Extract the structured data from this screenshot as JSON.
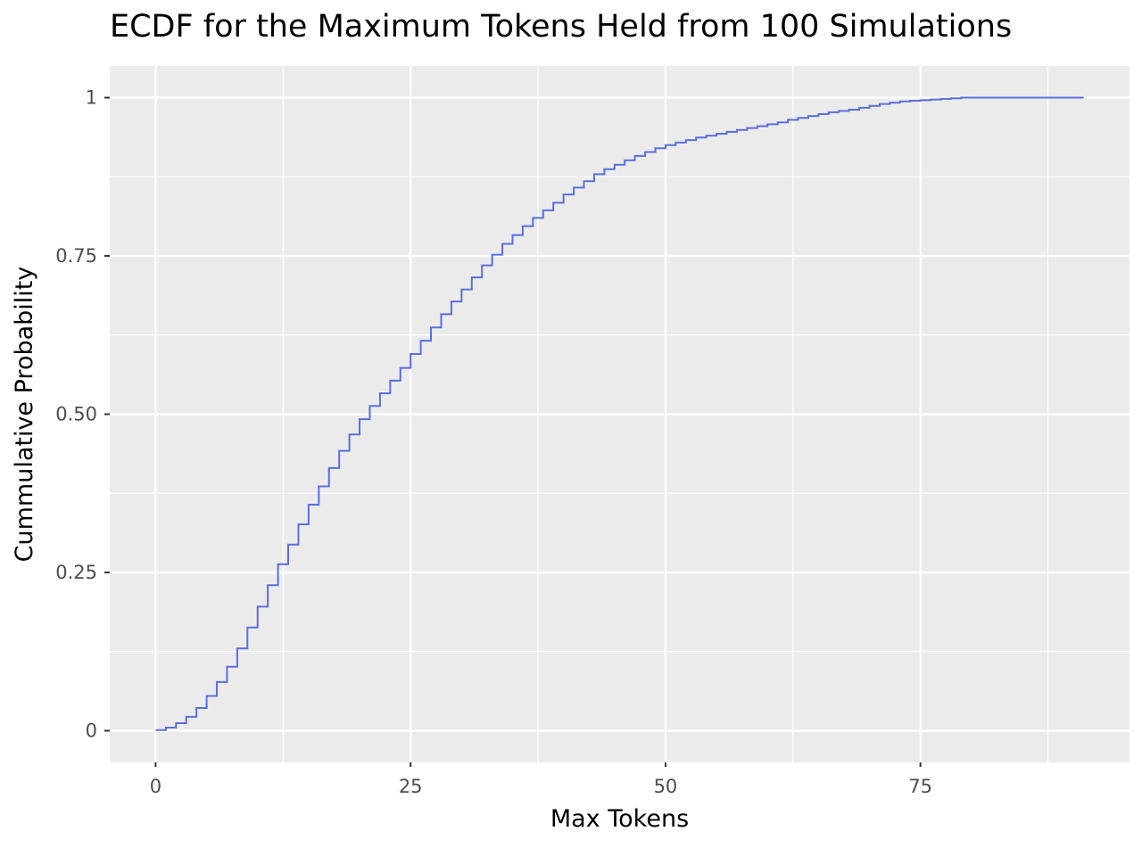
{
  "chart_data": {
    "type": "line",
    "subtype": "ecdf-step",
    "title": "ECDF for the Maximum Tokens Held from 100 Simulations",
    "xlabel": "Max Tokens",
    "ylabel": "Cummulative Probability",
    "xlim": [
      -4.5,
      95.5
    ],
    "ylim": [
      -0.05,
      1.05
    ],
    "x_ticks": [
      {
        "value": 0,
        "label": "0"
      },
      {
        "value": 25,
        "label": "25"
      },
      {
        "value": 50,
        "label": "50"
      },
      {
        "value": 75,
        "label": "75"
      }
    ],
    "y_ticks": [
      {
        "value": 0,
        "label": "0"
      },
      {
        "value": 0.25,
        "label": "0.25"
      },
      {
        "value": 0.5,
        "label": "0.50"
      },
      {
        "value": 0.75,
        "label": "0.75"
      },
      {
        "value": 1,
        "label": "1"
      }
    ],
    "grid": true,
    "colors": {
      "panel": "#ebebeb",
      "grid": "#ffffff",
      "line": "#5b6ee1"
    },
    "series": [
      {
        "x": [
          0,
          1,
          2,
          3,
          4,
          5,
          6,
          7,
          8,
          9,
          10,
          11,
          12,
          13,
          14,
          15,
          16,
          17,
          18,
          19,
          20,
          21,
          22,
          23,
          24,
          25,
          26,
          27,
          28,
          29,
          30,
          31,
          32,
          33,
          34,
          35,
          36,
          37,
          38,
          39,
          40,
          41,
          42,
          43,
          44,
          45,
          46,
          47,
          48,
          49,
          50,
          51,
          52,
          53,
          54,
          55,
          56,
          57,
          58,
          59,
          60,
          61,
          62,
          63,
          64,
          65,
          66,
          67,
          68,
          69,
          70,
          71,
          72,
          73,
          74,
          75,
          76,
          77,
          78,
          79,
          80,
          81,
          82,
          83,
          84,
          85,
          86,
          87,
          88,
          89,
          90,
          91
        ],
        "y": [
          0.001,
          0.005,
          0.012,
          0.022,
          0.036,
          0.055,
          0.077,
          0.101,
          0.13,
          0.163,
          0.196,
          0.23,
          0.263,
          0.294,
          0.326,
          0.357,
          0.386,
          0.415,
          0.442,
          0.468,
          0.492,
          0.513,
          0.533,
          0.553,
          0.573,
          0.595,
          0.616,
          0.637,
          0.658,
          0.678,
          0.697,
          0.716,
          0.735,
          0.752,
          0.769,
          0.783,
          0.797,
          0.81,
          0.822,
          0.834,
          0.847,
          0.858,
          0.868,
          0.879,
          0.887,
          0.894,
          0.901,
          0.908,
          0.914,
          0.92,
          0.925,
          0.929,
          0.933,
          0.937,
          0.94,
          0.943,
          0.946,
          0.949,
          0.952,
          0.955,
          0.958,
          0.961,
          0.965,
          0.968,
          0.971,
          0.974,
          0.977,
          0.979,
          0.981,
          0.984,
          0.987,
          0.99,
          0.992,
          0.994,
          0.995,
          0.996,
          0.997,
          0.998,
          0.999,
          1.0,
          1.0,
          1.0,
          1.0,
          1.0,
          1.0,
          1.0,
          1.0,
          1.0,
          1.0,
          1.0,
          1.0,
          1.0
        ]
      }
    ]
  }
}
